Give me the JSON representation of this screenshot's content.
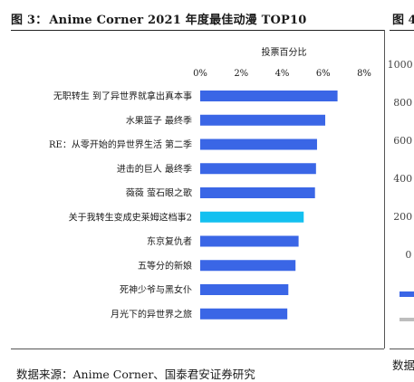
{
  "figure": {
    "label": "图 3：",
    "title": "Anime Corner 2021 年度最佳动漫 TOP10",
    "source": "数据来源：Anime Corner、国泰君安证券研究"
  },
  "right_panel": {
    "label": "图 4",
    "ticks": [
      "1000",
      "800",
      "600",
      "400",
      "200",
      "0"
    ],
    "source": "数据"
  },
  "colors": {
    "bar": "#3a66e6",
    "highlight": "#13c0f0"
  },
  "chart_data": {
    "type": "bar",
    "orientation": "horizontal",
    "xlabel": "投票百分比",
    "xaxis_position": "top",
    "xlim": [
      0,
      8
    ],
    "xticks": [
      "0%",
      "2%",
      "4%",
      "6%",
      "8%"
    ],
    "grid": false,
    "categories": [
      "无职转生 到了异世界就拿出真本事",
      "水果篮子 最终季",
      "RE：从零开始的异世界生活 第二季",
      "进击的巨人 最终季",
      "薇薇 萤石眼之歌",
      "关于我转生变成史莱姆这档事2",
      "东京复仇者",
      "五等分的新娘",
      "死神少爷与黑女仆",
      "月光下的异世界之旅"
    ],
    "values": [
      6.7,
      6.1,
      5.7,
      5.65,
      5.6,
      5.05,
      4.8,
      4.65,
      4.3,
      4.25
    ],
    "highlight_index": 5
  }
}
